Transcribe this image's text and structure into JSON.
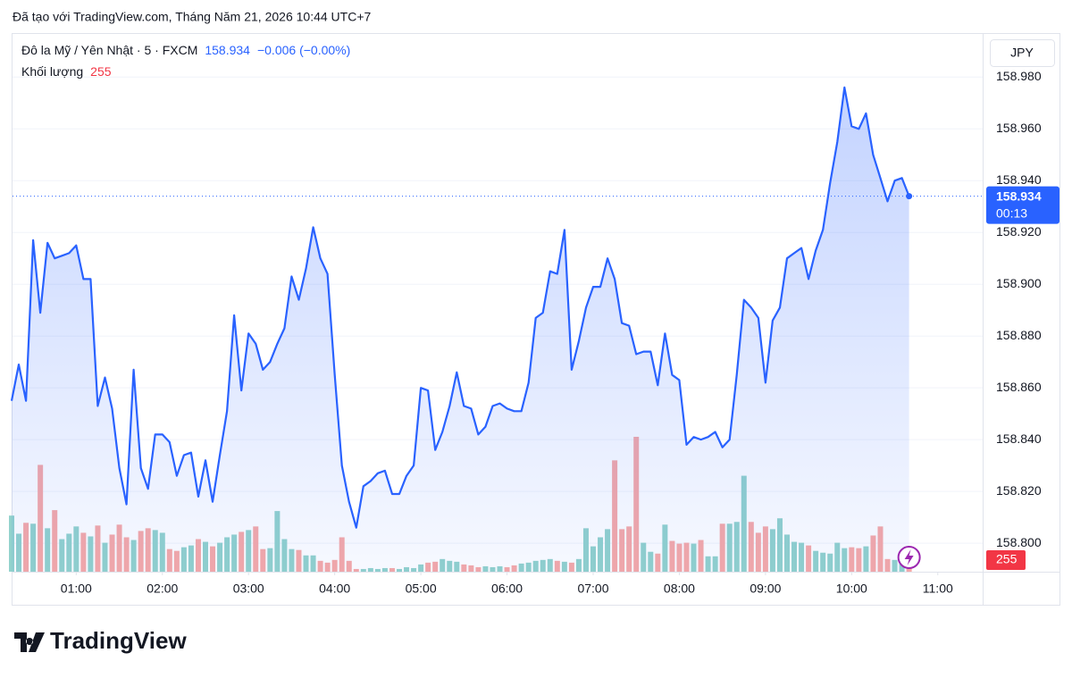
{
  "header": "Đã tạo với TradingView.com, Tháng Năm 21, 2026 10:44 UTC+7",
  "logo": "TradingView",
  "chart_data": {
    "type": "line",
    "title": "Đô la Mỹ / Yên Nhật · 5 · FXCM",
    "change": "−0.006 (−0.00%)",
    "currency": "JPY",
    "countdown": "00:13",
    "grid": true,
    "xlim": [
      "00:15",
      "11:30"
    ],
    "xticks": [
      "01:00",
      "02:00",
      "03:00",
      "04:00",
      "05:00",
      "06:00",
      "07:00",
      "08:00",
      "09:00",
      "10:00",
      "11:00"
    ],
    "ylim": [
      158.789,
      158.997
    ],
    "yticks": [
      {
        "value": 158.8,
        "label": "158.800"
      },
      {
        "value": 158.82,
        "label": "158.820"
      },
      {
        "value": 158.84,
        "label": "158.840"
      },
      {
        "value": 158.86,
        "label": "158.860"
      },
      {
        "value": 158.88,
        "label": "158.880"
      },
      {
        "value": 158.9,
        "label": "158.900"
      },
      {
        "value": 158.92,
        "label": "158.920"
      },
      {
        "value": 158.94,
        "label": "158.940"
      },
      {
        "value": 158.96,
        "label": "158.960"
      },
      {
        "value": 158.98,
        "label": "158.980"
      }
    ],
    "x": [
      "00:15",
      "00:20",
      "00:25",
      "00:30",
      "00:35",
      "00:40",
      "00:45",
      "00:50",
      "00:55",
      "01:00",
      "01:05",
      "01:10",
      "01:15",
      "01:20",
      "01:25",
      "01:30",
      "01:35",
      "01:40",
      "01:45",
      "01:50",
      "01:55",
      "02:00",
      "02:05",
      "02:10",
      "02:15",
      "02:20",
      "02:25",
      "02:30",
      "02:35",
      "02:40",
      "02:45",
      "02:50",
      "02:55",
      "03:00",
      "03:05",
      "03:10",
      "03:15",
      "03:20",
      "03:25",
      "03:30",
      "03:35",
      "03:40",
      "03:45",
      "03:50",
      "03:55",
      "04:00",
      "04:05",
      "04:10",
      "04:15",
      "04:20",
      "04:25",
      "04:30",
      "04:35",
      "04:40",
      "04:45",
      "04:50",
      "04:55",
      "05:00",
      "05:05",
      "05:10",
      "05:15",
      "05:20",
      "05:25",
      "05:30",
      "05:35",
      "05:40",
      "05:45",
      "05:50",
      "05:55",
      "06:00",
      "06:05",
      "06:10",
      "06:15",
      "06:20",
      "06:25",
      "06:30",
      "06:35",
      "06:40",
      "06:45",
      "06:50",
      "06:55",
      "07:00",
      "07:05",
      "07:10",
      "07:15",
      "07:20",
      "07:25",
      "07:30",
      "07:35",
      "07:40",
      "07:45",
      "07:50",
      "07:55",
      "08:00",
      "08:05",
      "08:10",
      "08:15",
      "08:20",
      "08:25",
      "08:30",
      "08:35",
      "08:40",
      "08:45",
      "08:50",
      "08:55",
      "09:00",
      "09:05",
      "09:10",
      "09:15",
      "09:20",
      "09:25",
      "09:30",
      "09:35",
      "09:40",
      "09:45",
      "09:50",
      "09:55",
      "10:00",
      "10:05",
      "10:10",
      "10:15",
      "10:20",
      "10:25",
      "10:30",
      "10:35",
      "10:40"
    ],
    "series": [
      {
        "color": "#2962ff",
        "values": [
          158.855,
          158.869,
          158.855,
          158.917,
          158.889,
          158.916,
          158.91,
          158.911,
          158.912,
          158.915,
          158.902,
          158.902,
          158.853,
          158.864,
          158.852,
          158.829,
          158.815,
          158.867,
          158.829,
          158.821,
          158.842,
          158.842,
          158.839,
          158.826,
          158.834,
          158.835,
          158.818,
          158.832,
          158.816,
          158.834,
          158.851,
          158.888,
          158.859,
          158.881,
          158.877,
          158.867,
          158.87,
          158.877,
          158.883,
          158.903,
          158.894,
          158.906,
          158.922,
          158.91,
          158.904,
          158.865,
          158.83,
          158.816,
          158.806,
          158.822,
          158.824,
          158.827,
          158.828,
          158.819,
          158.819,
          158.826,
          158.83,
          158.86,
          158.859,
          158.836,
          158.843,
          158.853,
          158.866,
          158.853,
          158.852,
          158.842,
          158.845,
          158.853,
          158.854,
          158.852,
          158.851,
          158.851,
          158.862,
          158.887,
          158.889,
          158.905,
          158.904,
          158.921,
          158.867,
          158.878,
          158.891,
          158.899,
          158.899,
          158.91,
          158.902,
          158.885,
          158.884,
          158.873,
          158.874,
          158.874,
          158.861,
          158.881,
          158.865,
          158.863,
          158.838,
          158.841,
          158.84,
          158.841,
          158.843,
          158.837,
          158.84,
          158.865,
          158.894,
          158.891,
          158.887,
          158.862,
          158.886,
          158.891,
          158.91,
          158.912,
          158.914,
          158.902,
          158.913,
          158.921,
          158.939,
          158.955,
          158.976,
          158.961,
          158.96,
          158.966,
          158.95,
          158.941,
          158.932,
          158.94,
          158.941,
          158.934
        ]
      }
    ],
    "volume": {
      "name": "Khối lượng",
      "up_color": "#92d2cc",
      "down_color": "#f7a9a7",
      "label_color": "#f23645",
      "values": [
        1240,
        840,
        1080,
        1060,
        2360,
        960,
        1360,
        720,
        840,
        1000,
        860,
        780,
        1020,
        640,
        820,
        1040,
        760,
        700,
        900,
        960,
        920,
        860,
        500,
        460,
        540,
        580,
        720,
        660,
        560,
        640,
        760,
        820,
        880,
        920,
        1000,
        500,
        520,
        1340,
        720,
        500,
        480,
        360,
        360,
        240,
        200,
        260,
        760,
        240,
        60,
        60,
        80,
        60,
        80,
        80,
        60,
        100,
        80,
        160,
        200,
        220,
        280,
        240,
        220,
        160,
        140,
        100,
        120,
        100,
        120,
        100,
        140,
        180,
        200,
        240,
        260,
        280,
        240,
        220,
        200,
        280,
        960,
        560,
        760,
        940,
        2460,
        940,
        1000,
        2980,
        640,
        440,
        400,
        1040,
        680,
        620,
        640,
        620,
        700,
        340,
        340,
        1060,
        1060,
        1100,
        2120,
        1100,
        860,
        1000,
        940,
        1180,
        820,
        660,
        640,
        580,
        460,
        420,
        400,
        640,
        520,
        540,
        520,
        560,
        800,
        1000,
        280,
        260,
        300,
        255
      ]
    }
  }
}
